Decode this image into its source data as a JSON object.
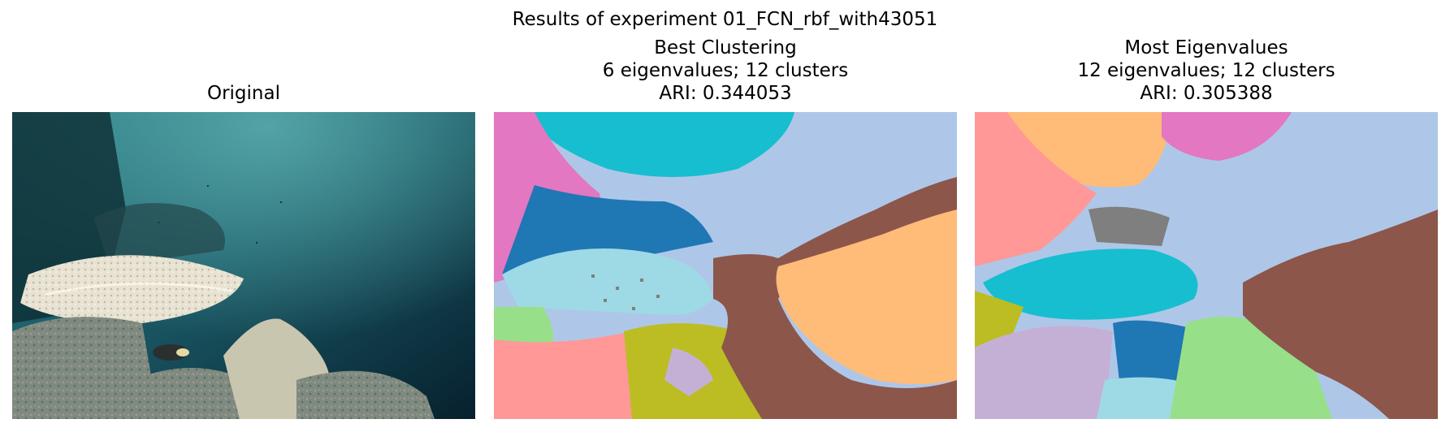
{
  "figure": {
    "suptitle": "Results of experiment 01_FCN_rbf_with43051"
  },
  "panels": [
    {
      "lines": [
        "Original"
      ]
    },
    {
      "lines": [
        "Best Clustering",
        "6 eigenvalues; 12 clusters",
        "ARI: 0.344053"
      ]
    },
    {
      "lines": [
        "Most Eigenvalues",
        "12 eigenvalues; 12 clusters",
        "ARI: 0.305388"
      ]
    }
  ],
  "colors": {
    "tab_blue": "#1f77b4",
    "tab_lightblue": "#aec7e8",
    "tab_orange": "#ffbb78",
    "tab_green": "#98df8a",
    "tab_pink_red": "#ff9896",
    "tab_purple_light": "#c5b0d5",
    "tab_brown": "#8c564b",
    "tab_pink": "#e377c2",
    "tab_gray": "#7f7f7f",
    "tab_olive": "#bcbd22",
    "tab_cyan": "#17becf",
    "tab_cyan_light": "#9edae5"
  }
}
